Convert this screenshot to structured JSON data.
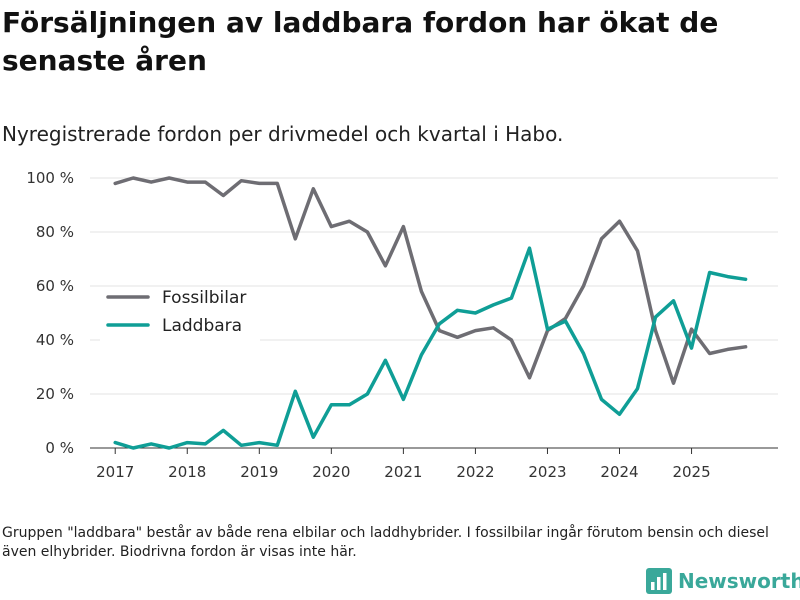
{
  "header": {
    "title": "Försäljningen av laddbara fordon har ökat de senaste åren",
    "subtitle": "Nyregistrerade fordon per drivmedel och kvartal i Habo."
  },
  "footer": {
    "note": "Gruppen \"laddbara\" består av både rena elbilar och laddhybrider. I fossilbilar ingår förutom bensin och diesel även elhybrider. Biodrivna fordon är visas inte här.",
    "brand": "Newsworthy"
  },
  "colors": {
    "fossil": "#6e6d73",
    "laddbara": "#0f9e96",
    "grid": "#e3e3e3",
    "brand": "#3aa89a"
  },
  "chart_data": {
    "type": "line",
    "title": "Försäljningen av laddbara fordon har ökat de senaste åren",
    "subtitle": "Nyregistrerade fordon per drivmedel och kvartal i Habo.",
    "xlabel": "",
    "ylabel": "",
    "x": [
      2017.0,
      2017.25,
      2017.5,
      2017.75,
      2018.0,
      2018.25,
      2018.5,
      2018.75,
      2019.0,
      2019.25,
      2019.5,
      2019.75,
      2020.0,
      2020.25,
      2020.5,
      2020.75,
      2021.0,
      2021.25,
      2021.5,
      2021.75,
      2022.0,
      2022.25,
      2022.5,
      2022.75,
      2023.0,
      2023.25,
      2023.5,
      2023.75,
      2024.0,
      2024.25,
      2024.5,
      2024.75,
      2025.0,
      2025.25,
      2025.5,
      2025.75
    ],
    "xlim": [
      2016.65,
      2026.2
    ],
    "ylim": [
      0,
      100
    ],
    "xticks": [
      2017,
      2018,
      2019,
      2020,
      2021,
      2022,
      2023,
      2024,
      2025
    ],
    "xtick_labels": [
      "2017",
      "2018",
      "2019",
      "2020",
      "2021",
      "2022",
      "2023",
      "2024",
      "2025"
    ],
    "yticks": [
      0,
      20,
      40,
      60,
      80,
      100
    ],
    "ytick_labels": [
      "0 %",
      "20 %",
      "40 %",
      "60 %",
      "80 %",
      "100 %"
    ],
    "grid": true,
    "legend_position": "middle-left",
    "series": [
      {
        "name": "Fossilbilar",
        "color": "#6e6d73",
        "values": [
          98,
          100,
          98.5,
          100,
          98.5,
          98.5,
          93.5,
          99,
          98,
          98,
          77.5,
          96,
          82,
          84,
          80,
          67.5,
          82,
          58,
          43.5,
          41,
          43.5,
          44.5,
          40,
          26,
          43.5,
          48,
          60,
          77.5,
          84,
          73,
          43.5,
          24,
          44,
          35,
          36.5,
          37.5
        ]
      },
      {
        "name": "Laddbara",
        "color": "#0f9e96",
        "values": [
          2,
          0,
          1.5,
          0,
          2,
          1.5,
          6.5,
          1,
          2,
          1,
          21,
          4,
          16,
          16,
          20,
          32.5,
          18,
          34.5,
          46,
          51,
          50,
          53,
          55.5,
          74,
          44,
          47,
          35,
          18,
          12.5,
          22,
          48.5,
          54.5,
          37,
          65,
          63.5,
          62.5
        ]
      }
    ]
  }
}
